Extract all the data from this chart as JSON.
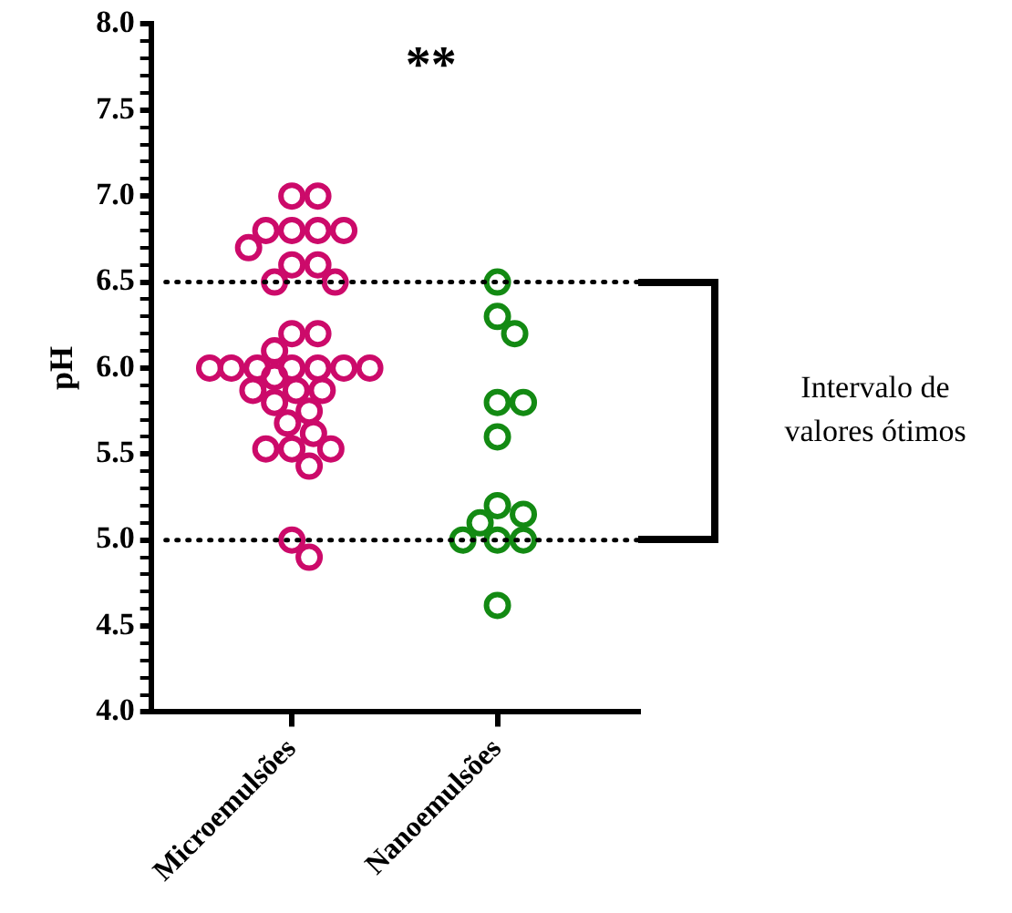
{
  "chart_data": {
    "type": "scatter",
    "categories": [
      "Microemulsões",
      "Nanoemulsões"
    ],
    "ylabel": "pH",
    "annotations": [
      "**",
      "Intervalo de valores ótimos"
    ],
    "series": [
      {
        "color": "#cc0a6a",
        "x": [
          "Microemulsões",
          "Microemulsões",
          "Microemulsões",
          "Microemulsões",
          "Microemulsões",
          "Microemulsões",
          "Microemulsões",
          "Microemulsões",
          "Microemulsões",
          "Microemulsões",
          "Microemulsões",
          "Microemulsões",
          "Microemulsões",
          "Microemulsões",
          "Microemulsões",
          "Microemulsões",
          "Microemulsões",
          "Microemulsões",
          "Microemulsões",
          "Microemulsões",
          "Microemulsões",
          "Microemulsões",
          "Microemulsões",
          "Microemulsões",
          "Microemulsões",
          "Microemulsões",
          "Microemulsões",
          "Microemulsões",
          "Microemulsões",
          "Microemulsões",
          "Microemulsões",
          "Microemulsões",
          "Microemulsões",
          "Microemulsões",
          "Microemulsões"
        ],
        "values": [
          7.0,
          7.0,
          6.8,
          6.8,
          6.8,
          6.8,
          6.7,
          6.6,
          6.6,
          6.5,
          6.5,
          6.2,
          6.2,
          6.1,
          6.0,
          6.0,
          6.0,
          6.0,
          6.0,
          6.0,
          6.0,
          5.95,
          5.87,
          5.87,
          5.87,
          5.8,
          5.75,
          5.68,
          5.62,
          5.53,
          5.53,
          5.53,
          5.43,
          5.0,
          4.9
        ]
      },
      {
        "color": "#138a13",
        "x": [
          "Nanoemulsões",
          "Nanoemulsões",
          "Nanoemulsões",
          "Nanoemulsões",
          "Nanoemulsões",
          "Nanoemulsões",
          "Nanoemulsões",
          "Nanoemulsões",
          "Nanoemulsões",
          "Nanoemulsões",
          "Nanoemulsões",
          "Nanoemulsões",
          "Nanoemulsões"
        ],
        "values": [
          6.5,
          6.3,
          6.2,
          5.8,
          5.8,
          5.6,
          5.2,
          5.15,
          5.1,
          5.0,
          5.0,
          5.0,
          4.62
        ]
      }
    ],
    "ylim": [
      4.0,
      8.0
    ],
    "yticks": [
      {
        "value": 4.0,
        "label": "4.0"
      },
      {
        "value": 4.1,
        "label": null
      },
      {
        "value": 4.2,
        "label": null
      },
      {
        "value": 4.3,
        "label": null
      },
      {
        "value": 4.4,
        "label": null
      },
      4.5,
      {
        "value": 4.6,
        "label": null
      },
      {
        "value": 4.7,
        "label": null
      },
      {
        "value": 4.8,
        "label": null
      },
      {
        "value": 4.9,
        "label": null
      },
      {
        "value": 5.0,
        "label": "5.0"
      },
      {
        "value": 5.1,
        "label": null
      },
      {
        "value": 5.2,
        "label": null
      },
      {
        "value": 5.3,
        "label": null
      },
      {
        "value": 5.4,
        "label": null
      },
      5.5,
      {
        "value": 5.6,
        "label": null
      },
      {
        "value": 5.7,
        "label": null
      },
      {
        "value": 5.8,
        "label": null
      },
      {
        "value": 5.9,
        "label": null
      },
      {
        "value": 6.0,
        "label": "6.0"
      },
      {
        "value": 6.1,
        "label": null
      },
      {
        "value": 6.2,
        "label": null
      },
      {
        "value": 6.3,
        "label": null
      },
      {
        "value": 6.4,
        "label": null
      },
      6.5,
      {
        "value": 6.6,
        "label": null
      },
      {
        "value": 6.7,
        "label": null
      },
      {
        "value": 6.8,
        "label": null
      },
      {
        "value": 6.9,
        "label": null
      },
      {
        "value": 7.0,
        "label": "7.0"
      },
      {
        "value": 7.1,
        "label": null
      },
      {
        "value": 7.2,
        "label": null
      },
      {
        "value": 7.3,
        "label": null
      },
      {
        "value": 7.4,
        "label": null
      },
      7.5,
      {
        "value": 7.6,
        "label": null
      },
      {
        "value": 7.7,
        "label": null
      },
      {
        "value": 7.8,
        "label": null
      },
      {
        "value": 7.9,
        "label": null
      },
      {
        "value": 8.0,
        "label": "8.0"
      }
    ],
    "ref_lines": [
      {
        "axis": "y",
        "value": 6.5,
        "line_style": "dotted"
      },
      {
        "axis": "y",
        "value": 5.0,
        "line_style": "dotted"
      }
    ],
    "marker": "circle",
    "grid": false,
    "legend": false
  }
}
